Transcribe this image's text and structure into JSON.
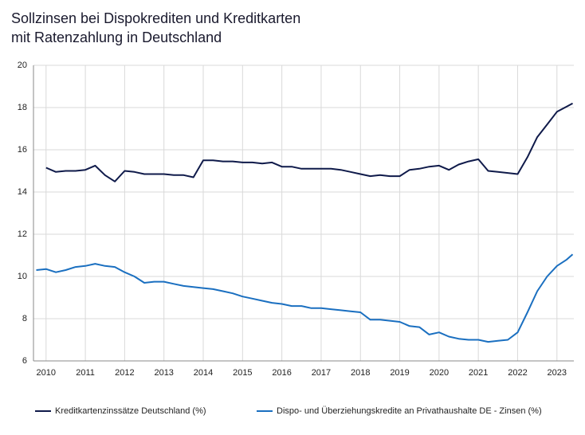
{
  "chart_data": {
    "type": "line",
    "title": [
      "Sollzinsen bei Dispokrediten und Kreditkarten",
      "mit Ratenzahlung in Deutschland"
    ],
    "x": [
      2009.75,
      2010,
      2010.25,
      2010.5,
      2010.75,
      2011,
      2011.25,
      2011.5,
      2011.75,
      2012,
      2012.25,
      2012.5,
      2012.75,
      2013,
      2013.25,
      2013.5,
      2013.75,
      2014,
      2014.25,
      2014.5,
      2014.75,
      2015,
      2015.25,
      2015.5,
      2015.75,
      2016,
      2016.25,
      2016.5,
      2016.75,
      2017,
      2017.25,
      2017.5,
      2017.75,
      2018,
      2018.25,
      2018.5,
      2018.75,
      2019,
      2019.25,
      2019.5,
      2019.75,
      2020,
      2020.25,
      2020.5,
      2020.75,
      2021,
      2021.25,
      2021.5,
      2021.75,
      2022,
      2022.25,
      2022.5,
      2022.75,
      2023,
      2023.25,
      2023.4
    ],
    "series": [
      {
        "name": "Kreditkartenzinssätze Deutschland (%)",
        "color": "#0f1a4a",
        "values": [
          null,
          15.15,
          14.95,
          15.0,
          15.0,
          15.05,
          15.25,
          14.8,
          14.5,
          15.0,
          14.95,
          14.85,
          14.85,
          14.85,
          14.8,
          14.8,
          14.7,
          15.5,
          15.5,
          15.45,
          15.45,
          15.4,
          15.4,
          15.35,
          15.4,
          15.2,
          15.2,
          15.1,
          15.1,
          15.1,
          15.1,
          15.05,
          14.95,
          14.85,
          14.75,
          14.8,
          14.75,
          14.75,
          15.05,
          15.1,
          15.2,
          15.25,
          15.05,
          15.3,
          15.45,
          15.55,
          15.0,
          14.95,
          14.9,
          14.85,
          15.65,
          16.6,
          17.2,
          17.8,
          18.05,
          18.2
        ]
      },
      {
        "name": "Dispo- und Überziehungskredite an Privathaushalte DE - Zinsen (%)",
        "color": "#1a6fc0",
        "values": [
          10.3,
          10.35,
          10.2,
          10.3,
          10.45,
          10.5,
          10.6,
          10.5,
          10.45,
          10.2,
          10.0,
          9.7,
          9.75,
          9.75,
          9.65,
          9.55,
          9.5,
          9.45,
          9.4,
          9.3,
          9.2,
          9.05,
          8.95,
          8.85,
          8.75,
          8.7,
          8.6,
          8.6,
          8.5,
          8.5,
          8.45,
          8.4,
          8.35,
          8.3,
          7.95,
          7.95,
          7.9,
          7.85,
          7.65,
          7.6,
          7.25,
          7.35,
          7.15,
          7.05,
          7.0,
          7.0,
          6.9,
          6.95,
          7.0,
          7.35,
          8.3,
          9.3,
          10.0,
          10.5,
          10.8,
          11.05
        ]
      }
    ],
    "xlim": [
      2009.68,
      2023.43
    ],
    "xticks": [
      2010,
      2011,
      2012,
      2013,
      2014,
      2015,
      2016,
      2017,
      2018,
      2019,
      2020,
      2021,
      2022,
      2023
    ],
    "ylim": [
      6,
      20
    ],
    "yticks": [
      6,
      8,
      10,
      12,
      14,
      16,
      18,
      20
    ],
    "grid": true
  }
}
